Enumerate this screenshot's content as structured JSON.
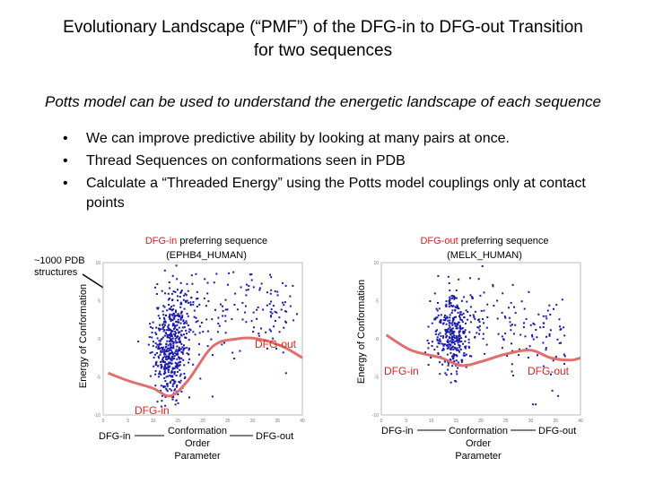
{
  "slide": {
    "title_line1": "Evolutionary Landscape (“PMF”) of the DFG-in to DFG-out Transition",
    "title_line2": "for two sequences",
    "subtitle": "Potts model can be used to understand the energetic landscape of each sequence",
    "bullets": [
      "We can improve predictive ability by looking at many pairs at once.",
      "Thread Sequences on conformations seen in PDB",
      "Calculate a “Threaded Energy” using the Potts model couplings only at contact points"
    ],
    "bullet_symbol": "•",
    "annotation_line1": "~1000 PDB",
    "annotation_line2": "structures"
  },
  "left_plot": {
    "title_colored": "DFG-in",
    "title_rest": "preferring sequence",
    "subtitle": "(EPHB4_HUMAN)",
    "ylabel": "Energy of Conformation",
    "label_dfg_out_curve": "DFG-out",
    "label_dfg_in_curve": "DFG-in",
    "axis_left": "DFG-in",
    "axis_middle_1": "Conformation",
    "axis_middle_2": "Order",
    "axis_middle_3": "Parameter",
    "axis_right": "DFG-out"
  },
  "right_plot": {
    "title_colored": "DFG-out",
    "title_rest": "preferring sequence",
    "subtitle": "(MELK_HUMAN)",
    "ylabel": "Energy of Conformation",
    "label_dfg_in_curve": "DFG-in",
    "label_dfg_out_curve": "DFG-out",
    "axis_left": "DFG-in",
    "axis_middle_1": "Conformation",
    "axis_middle_2": "Order",
    "axis_middle_3": "Parameter",
    "axis_right": "DFG-out"
  },
  "colors": {
    "points": "#1a1aa8",
    "curve": "#e07070",
    "label_red": "#e02020"
  },
  "chart_data": [
    {
      "type": "scatter",
      "title": "DFG-in preferring sequence (EPHB4_HUMAN)",
      "ylabel": "Energy of Conformation",
      "x_ticks": [
        "0",
        "5",
        "10",
        "15",
        "20",
        "25",
        "30",
        "35",
        "40"
      ],
      "y_ticks": [
        "10",
        "5",
        "0",
        "-5",
        "-10"
      ],
      "xlim": [
        0,
        40
      ],
      "ylim": [
        -10,
        10
      ],
      "clusters": [
        {
          "cx": 13.5,
          "cy": -2.0,
          "sx": 1.6,
          "sy": 3.5,
          "n": 380
        },
        {
          "cx": 15.0,
          "cy": 1.5,
          "sx": 2.5,
          "sy": 3.2,
          "n": 160
        },
        {
          "cx": 25.0,
          "cy": 4.0,
          "sx": 6.0,
          "sy": 3.0,
          "n": 110
        },
        {
          "cx": 34.0,
          "cy": 3.0,
          "sx": 2.0,
          "sy": 2.5,
          "n": 40
        }
      ],
      "curve": [
        [
          1,
          -4.5
        ],
        [
          5,
          -5.5
        ],
        [
          10,
          -6.5
        ],
        [
          13.5,
          -7.5
        ],
        [
          17,
          -5.5
        ],
        [
          22,
          -1.0
        ],
        [
          27,
          0
        ],
        [
          31,
          0
        ],
        [
          36,
          -1.0
        ],
        [
          40,
          -2.5
        ]
      ]
    },
    {
      "type": "scatter",
      "title": "DFG-out preferring sequence (MELK_HUMAN)",
      "ylabel": "Energy of Conformation",
      "x_ticks": [
        "0",
        "5",
        "10",
        "15",
        "20",
        "25",
        "30",
        "35",
        "40"
      ],
      "y_ticks": [
        "10",
        "5",
        "0",
        "-5",
        "-10"
      ],
      "xlim": [
        0,
        40
      ],
      "ylim": [
        -10,
        10
      ],
      "clusters": [
        {
          "cx": 14.0,
          "cy": 0.5,
          "sx": 2.0,
          "sy": 2.5,
          "n": 320
        },
        {
          "cx": 22.0,
          "cy": 2.5,
          "sx": 5.0,
          "sy": 3.0,
          "n": 110
        },
        {
          "cx": 34.0,
          "cy": 0.0,
          "sx": 2.5,
          "sy": 3.0,
          "n": 50
        }
      ],
      "curve": [
        [
          1,
          0.5
        ],
        [
          6,
          -1.5
        ],
        [
          12,
          -2.5
        ],
        [
          16,
          -3.5
        ],
        [
          20,
          -3.0
        ],
        [
          25,
          -2.0
        ],
        [
          30,
          -1.5
        ],
        [
          34,
          -2.5
        ],
        [
          38,
          -2.8
        ],
        [
          40,
          -2.5
        ]
      ]
    }
  ]
}
